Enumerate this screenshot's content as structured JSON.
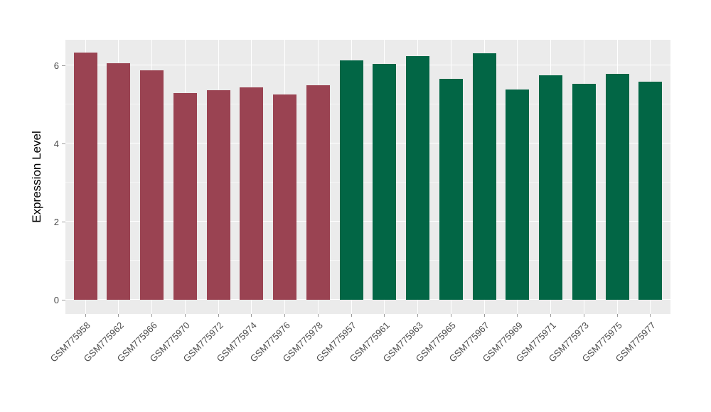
{
  "chart_data": {
    "type": "bar",
    "title": "",
    "xlabel": "",
    "ylabel": "Expression Level",
    "ylim": [
      0,
      6.65
    ],
    "yticks": [
      "0",
      "2",
      "4",
      "6"
    ],
    "ytick_values": [
      0,
      2,
      4,
      6
    ],
    "yminor_values": [
      1,
      3,
      5
    ],
    "legend_position": "none",
    "grid": "major horizontal at 0/2/4/6, minor at 1/3/5, vertical white lines at category centers",
    "colors": {
      "panel_bg": "#EBEBEB",
      "grid": "#FFFFFF",
      "left_group": "#9A4352",
      "right_group": "#026645",
      "axis_text": "#4D4D4D",
      "axis_title": "#000000"
    },
    "categories": [
      "GSM775958",
      "GSM775962",
      "GSM775966",
      "GSM775970",
      "GSM775972",
      "GSM775974",
      "GSM775976",
      "GSM775978",
      "GSM775957",
      "GSM775961",
      "GSM775963",
      "GSM775965",
      "GSM775967",
      "GSM775969",
      "GSM775971",
      "GSM775973",
      "GSM775975",
      "GSM775977"
    ],
    "values": [
      6.33,
      6.06,
      5.87,
      5.29,
      5.37,
      5.43,
      5.26,
      5.49,
      6.12,
      6.04,
      6.23,
      5.65,
      6.3,
      5.39,
      5.74,
      5.52,
      5.79,
      5.58
    ],
    "bars": [
      {
        "label": "GSM775958",
        "value": 6.33,
        "group": "left_group"
      },
      {
        "label": "GSM775962",
        "value": 6.06,
        "group": "left_group"
      },
      {
        "label": "GSM775966",
        "value": 5.87,
        "group": "left_group"
      },
      {
        "label": "GSM775970",
        "value": 5.29,
        "group": "left_group"
      },
      {
        "label": "GSM775972",
        "value": 5.37,
        "group": "left_group"
      },
      {
        "label": "GSM775974",
        "value": 5.43,
        "group": "left_group"
      },
      {
        "label": "GSM775976",
        "value": 5.26,
        "group": "left_group"
      },
      {
        "label": "GSM775978",
        "value": 5.49,
        "group": "left_group"
      },
      {
        "label": "GSM775957",
        "value": 6.12,
        "group": "right_group"
      },
      {
        "label": "GSM775961",
        "value": 6.04,
        "group": "right_group"
      },
      {
        "label": "GSM775963",
        "value": 6.23,
        "group": "right_group"
      },
      {
        "label": "GSM775965",
        "value": 5.65,
        "group": "right_group"
      },
      {
        "label": "GSM775967",
        "value": 6.3,
        "group": "right_group"
      },
      {
        "label": "GSM775969",
        "value": 5.39,
        "group": "right_group"
      },
      {
        "label": "GSM775971",
        "value": 5.74,
        "group": "right_group"
      },
      {
        "label": "GSM775973",
        "value": 5.52,
        "group": "right_group"
      },
      {
        "label": "GSM775975",
        "value": 5.79,
        "group": "right_group"
      },
      {
        "label": "GSM775977",
        "value": 5.58,
        "group": "right_group"
      }
    ]
  }
}
